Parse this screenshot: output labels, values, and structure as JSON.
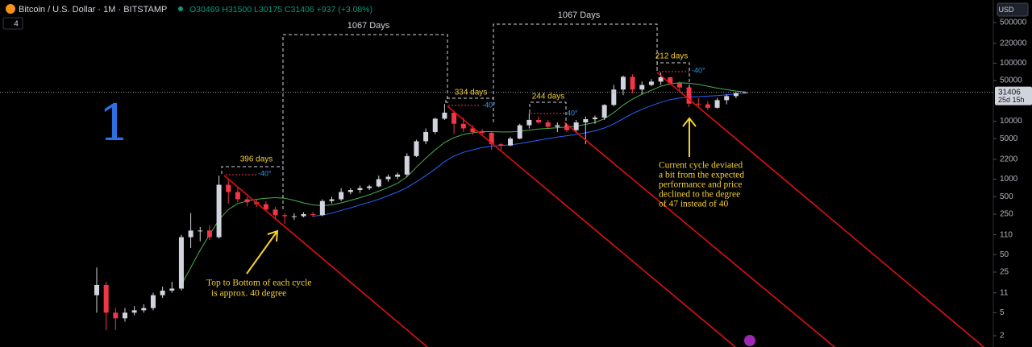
{
  "chart_data": {
    "type": "candlestick",
    "title": "Bitcoin / U.S. Dollar · 1M · BITSTAMP",
    "ohlc_text": "O30469 H31500 L30175 C31406 +937 (+3.08%)",
    "indicator_count": "4",
    "currency": "USD",
    "log_scale": true,
    "ylim": [
      1.28,
      1224000
    ],
    "yticks": [
      500000,
      220000,
      100000,
      50000,
      10000,
      5000,
      2200,
      1000,
      500,
      250,
      110,
      50,
      25,
      11,
      5,
      2
    ],
    "up_color": "#d1d4dc",
    "down_color": "#f23645",
    "series": {
      "open": [
        10,
        15,
        5,
        4,
        5,
        5.5,
        6,
        10,
        12,
        13,
        100,
        130,
        130,
        100,
        800,
        600,
        450,
        400,
        370,
        300,
        240,
        230,
        230,
        250,
        240,
        420,
        450,
        600,
        650,
        700,
        750,
        1000,
        1100,
        1200,
        2500,
        4500,
        6500,
        11000,
        14000,
        9000,
        7500,
        6500,
        6300,
        4000,
        3800,
        5000,
        8500,
        10500,
        9500,
        8000,
        8500,
        7000,
        9500,
        10800,
        11500,
        19000,
        35000,
        58000,
        35000,
        42000,
        48000,
        57000,
        45000,
        38000,
        20000,
        19500,
        17000,
        23000,
        27000,
        30469
      ],
      "high": [
        30,
        17,
        6,
        6,
        6.5,
        7,
        11,
        14,
        17,
        110,
        260,
        150,
        160,
        1150,
        1000,
        700,
        500,
        450,
        420,
        330,
        260,
        260,
        270,
        270,
        450,
        500,
        700,
        700,
        780,
        800,
        1150,
        1200,
        1300,
        2800,
        4800,
        7500,
        11500,
        19800,
        14500,
        11500,
        8500,
        7400,
        6600,
        4200,
        5400,
        9000,
        13800,
        12000,
        10500,
        9500,
        9000,
        10500,
        12000,
        12500,
        19500,
        42000,
        61000,
        64000,
        48000,
        53000,
        69000,
        58000,
        48000,
        40000,
        25000,
        22000,
        25000,
        29000,
        31500,
        31500
      ],
      "low": [
        5,
        2.5,
        2.5,
        3.5,
        4.5,
        5,
        5.5,
        9,
        11,
        12,
        65,
        85,
        90,
        95,
        380,
        400,
        340,
        330,
        280,
        200,
        170,
        200,
        220,
        220,
        230,
        380,
        420,
        550,
        580,
        650,
        720,
        900,
        1000,
        1100,
        2400,
        4000,
        6000,
        10500,
        6000,
        6500,
        5800,
        5900,
        3200,
        3200,
        3700,
        4900,
        7500,
        9000,
        7500,
        6500,
        6500,
        6600,
        4000,
        9000,
        10500,
        18000,
        28000,
        30000,
        29000,
        40000,
        42000,
        42000,
        33000,
        17500,
        17600,
        15500,
        16500,
        19500,
        24800,
        30175
      ],
      "close": [
        15,
        5,
        4,
        5,
        5.5,
        6,
        10,
        12,
        13,
        100,
        130,
        130,
        100,
        800,
        600,
        450,
        400,
        370,
        300,
        240,
        230,
        230,
        250,
        240,
        420,
        450,
        600,
        650,
        700,
        750,
        1000,
        1100,
        1200,
        2500,
        4500,
        6500,
        11000,
        14000,
        9000,
        7500,
        6500,
        6300,
        4000,
        3800,
        5000,
        8500,
        10500,
        9500,
        8000,
        8500,
        7000,
        9500,
        10800,
        11500,
        19000,
        35000,
        58000,
        35000,
        42000,
        48000,
        57000,
        45000,
        38000,
        20000,
        19500,
        17000,
        23000,
        27000,
        30469,
        31406
      ]
    },
    "moving_averages": [
      {
        "color": "#4caf50",
        "values": [
          null,
          null,
          null,
          null,
          null,
          null,
          null,
          null,
          null,
          15,
          30,
          60,
          110,
          200,
          300,
          380,
          420,
          450,
          470,
          480,
          470,
          430,
          390,
          360,
          350,
          360,
          390,
          430,
          480,
          540,
          620,
          720,
          850,
          1100,
          1600,
          2300,
          3200,
          4300,
          5200,
          5900,
          6300,
          6600,
          6600,
          6500,
          6500,
          6700,
          7000,
          7300,
          7500,
          7700,
          7900,
          8200,
          8800,
          9500,
          11000,
          14000,
          19000,
          24000,
          29000,
          34000,
          40000,
          44000,
          46000,
          45000,
          43000,
          40000,
          37000,
          35000,
          33000,
          32000
        ]
      },
      {
        "color": "#2962ff",
        "values": [
          null,
          null,
          null,
          null,
          null,
          null,
          null,
          null,
          null,
          null,
          null,
          null,
          null,
          null,
          null,
          null,
          null,
          null,
          null,
          null,
          null,
          null,
          null,
          230,
          240,
          260,
          290,
          320,
          360,
          400,
          450,
          520,
          600,
          720,
          900,
          1150,
          1500,
          2000,
          2500,
          2900,
          3200,
          3500,
          3700,
          3800,
          3900,
          4100,
          4400,
          4700,
          5000,
          5300,
          5600,
          5900,
          6300,
          6800,
          7600,
          9000,
          11000,
          13500,
          16000,
          18500,
          21000,
          23500,
          25000,
          26000,
          26500,
          27000,
          27500,
          28500,
          29500,
          30500
        ]
      }
    ],
    "current_price": 31406,
    "countdown": "25d 15h",
    "annotations": {
      "marker": "1",
      "span_1": "1067 Days",
      "span_2": "1067 Days",
      "cycle_1": "396 days",
      "cycle_2": "334 days",
      "cycle_3": "244 days",
      "cycle_4": "212 days",
      "angle_1": "-40°",
      "angle_2": "-40°",
      "angle_3": "-40°",
      "angle_4": "-40°",
      "note_left": [
        "Top to Bottom of each cycle",
        "is approx. 40 degree"
      ],
      "note_right": [
        "Current cycle deviated",
        "a bit from the expected",
        "performance and price",
        "declined to the degree",
        "of 47 instead of 40"
      ]
    }
  }
}
